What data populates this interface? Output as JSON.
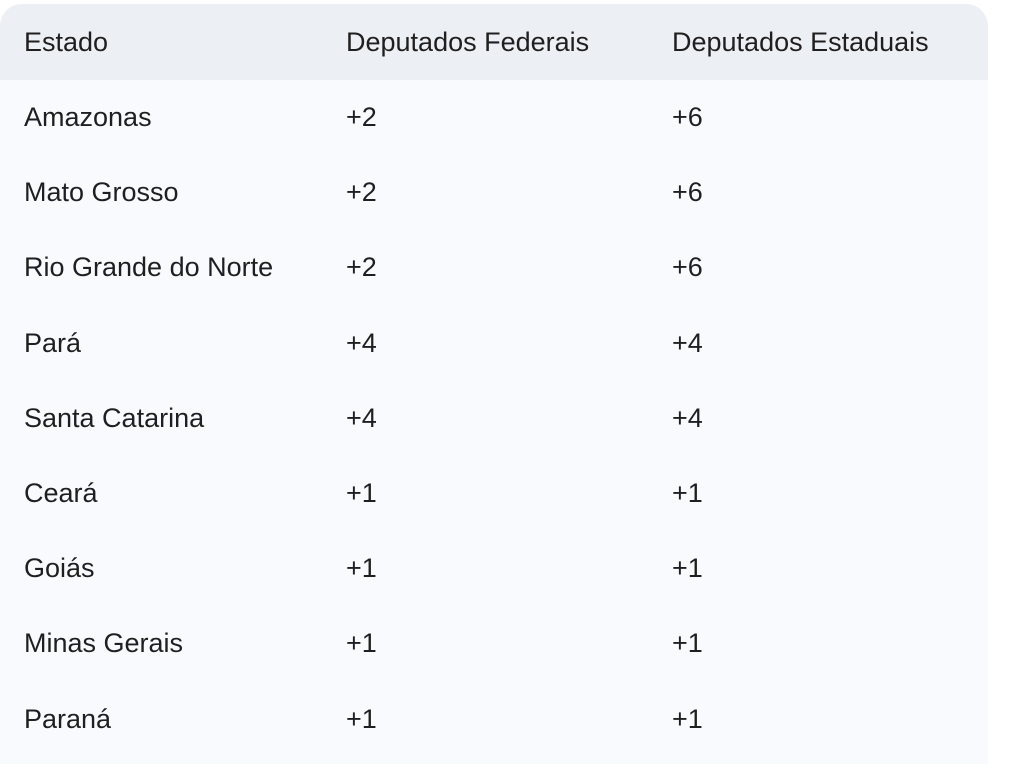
{
  "table": {
    "headers": {
      "estado": "Estado",
      "federais": "Deputados Federais",
      "estaduais": "Deputados Estaduais"
    },
    "rows": [
      {
        "estado": "Amazonas",
        "federais": "+2",
        "estaduais": "+6"
      },
      {
        "estado": "Mato Grosso",
        "federais": "+2",
        "estaduais": "+6"
      },
      {
        "estado": "Rio Grande do Norte",
        "federais": "+2",
        "estaduais": "+6"
      },
      {
        "estado": "Pará",
        "federais": "+4",
        "estaduais": "+4"
      },
      {
        "estado": "Santa Catarina",
        "federais": "+4",
        "estaduais": "+4"
      },
      {
        "estado": "Ceará",
        "federais": "+1",
        "estaduais": "+1"
      },
      {
        "estado": "Goiás",
        "federais": "+1",
        "estaduais": "+1"
      },
      {
        "estado": "Minas Gerais",
        "federais": "+1",
        "estaduais": "+1"
      },
      {
        "estado": "Paraná",
        "federais": "+1",
        "estaduais": "+1"
      }
    ]
  }
}
